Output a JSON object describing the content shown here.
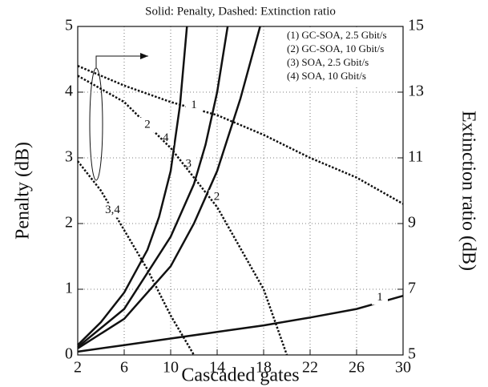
{
  "chart_data": {
    "type": "line",
    "title": "Solid: Penalty, Dashed: Extinction ratio",
    "xlabel": "Cascaded gates",
    "ylabel": "Penalty (dB)",
    "y2label": "Extinction ratio (dB)",
    "xlim": [
      2,
      30
    ],
    "xticks": [
      2,
      6,
      10,
      14,
      18,
      22,
      26,
      30
    ],
    "ylim": [
      0,
      5
    ],
    "yticks": [
      0,
      1,
      2,
      3,
      4,
      5
    ],
    "y2lim": [
      5,
      15
    ],
    "y2ticks": [
      5,
      7,
      9,
      11,
      13,
      15
    ],
    "grid": true,
    "legend": [
      "(1) GC-SOA, 2.5 Gbit/s",
      "(2) GC-SOA, 10 Gbit/s",
      "(3) SOA, 2.5 Gbit/s",
      "(4) SOA, 10 Gbit/s"
    ],
    "series": [
      {
        "label": "1",
        "style": "solid",
        "color": "#111111",
        "x": [
          2,
          6,
          10,
          14,
          18,
          22,
          26,
          30
        ],
        "values": [
          0.05,
          0.15,
          0.25,
          0.35,
          0.45,
          0.57,
          0.7,
          0.9
        ]
      },
      {
        "label": "2",
        "style": "solid",
        "color": "#111111",
        "x": [
          2,
          6,
          10,
          12,
          14,
          16,
          17.7
        ],
        "values": [
          0.1,
          0.55,
          1.35,
          2.0,
          2.8,
          3.9,
          5
        ]
      },
      {
        "label": "3",
        "style": "solid",
        "color": "#111111",
        "x": [
          2,
          6,
          10,
          12,
          13,
          14,
          14.9
        ],
        "values": [
          0.12,
          0.7,
          1.8,
          2.6,
          3.2,
          4.0,
          5
        ]
      },
      {
        "label": "4",
        "style": "solid",
        "color": "#111111",
        "x": [
          2,
          4,
          6,
          8,
          9,
          10,
          10.8,
          11.4
        ],
        "values": [
          0.15,
          0.5,
          0.95,
          1.6,
          2.1,
          2.8,
          3.8,
          5
        ]
      },
      {
        "label": "1",
        "style": "dashed",
        "axis": "y2",
        "color": "#111111",
        "x": [
          2,
          6,
          10,
          14,
          18,
          22,
          26,
          30
        ],
        "values": [
          13.8,
          13.2,
          12.7,
          12.3,
          11.7,
          11.0,
          10.4,
          9.6
        ]
      },
      {
        "label": "2",
        "style": "dashed",
        "axis": "y2",
        "color": "#111111",
        "x": [
          2,
          6,
          10,
          14,
          18,
          20
        ],
        "values": [
          13.5,
          12.7,
          11.3,
          9.5,
          7.0,
          5
        ]
      },
      {
        "label": "3,4",
        "style": "dashed",
        "axis": "y2",
        "color": "#111111",
        "x": [
          2,
          4,
          6,
          8,
          10,
          12
        ],
        "values": [
          10.9,
          10.0,
          8.8,
          7.6,
          6.2,
          5
        ]
      }
    ]
  }
}
